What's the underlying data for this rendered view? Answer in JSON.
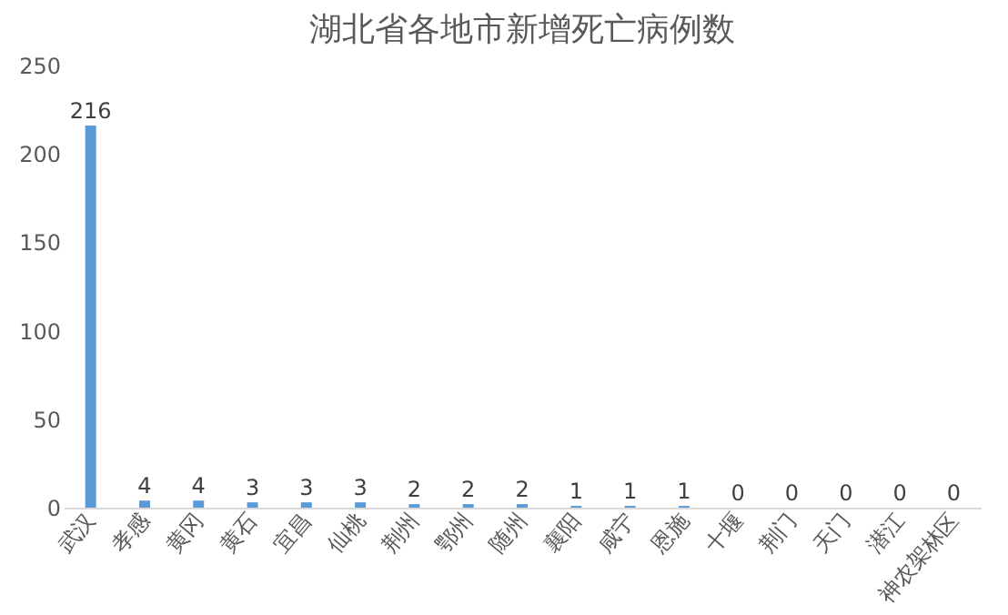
{
  "chart_data": {
    "type": "bar",
    "title": "湖北省各地市新增死亡病例数",
    "categories": [
      "武汉",
      "孝感",
      "黄冈",
      "黄石",
      "宜昌",
      "仙桃",
      "荆州",
      "鄂州",
      "随州",
      "襄阳",
      "咸宁",
      "恩施",
      "十堰",
      "荆门",
      "天门",
      "潜江",
      "神农架林区"
    ],
    "values": [
      216,
      4,
      4,
      3,
      3,
      3,
      2,
      2,
      2,
      1,
      1,
      1,
      0,
      0,
      0,
      0,
      0
    ],
    "color": "#5b9bd5",
    "ylim": [
      0,
      250
    ],
    "yticks": [
      0,
      50,
      100,
      150,
      200,
      250
    ],
    "grid": false,
    "data_labels": true
  }
}
